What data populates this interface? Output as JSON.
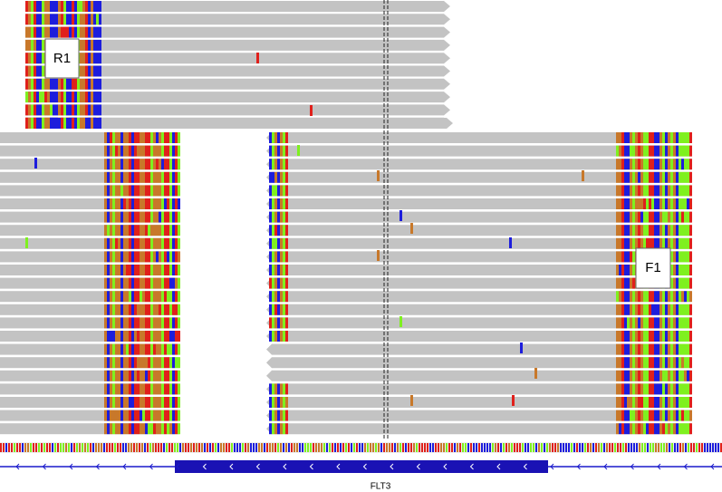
{
  "labels": {
    "r1": "R1",
    "f1": "F1"
  },
  "track": {
    "gene": "FLT3"
  }
}
